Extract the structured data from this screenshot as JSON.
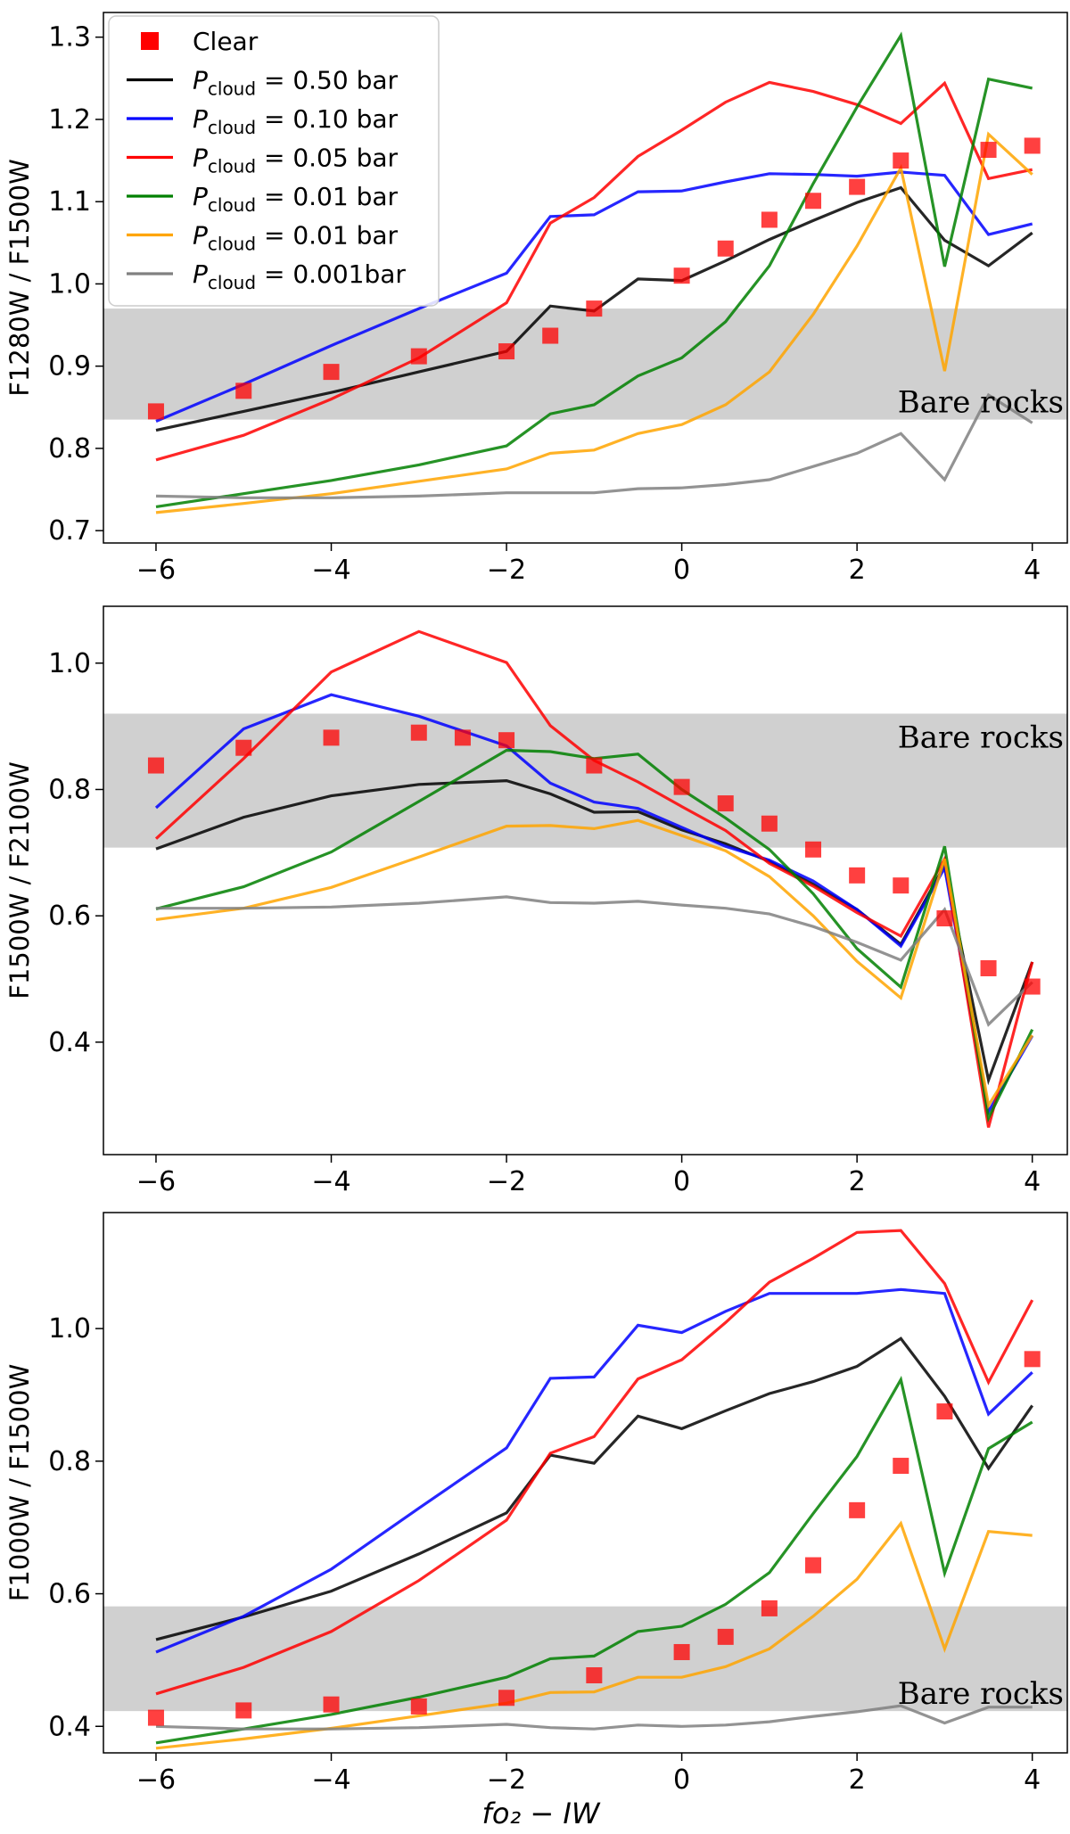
{
  "chart_data": [
    {
      "type": "line",
      "title": "",
      "xlabel": "",
      "ylabel": "F1280W / F1500W",
      "xlim": [
        -6.6,
        4.4
      ],
      "ylim": [
        0.685,
        1.33
      ],
      "xticks": [
        -6,
        -4,
        -2,
        0,
        2,
        4
      ],
      "xtick_labels": [
        "−6",
        "−4",
        "−2",
        "0",
        "2",
        "4"
      ],
      "yticks": [
        0.7,
        0.8,
        0.9,
        1.0,
        1.1,
        1.2,
        1.3
      ],
      "ytick_labels": [
        "0.7",
        "0.8",
        "0.9",
        "1.0",
        "1.1",
        "1.2",
        "1.3"
      ],
      "band": {
        "y0": 0.835,
        "y1": 0.97,
        "label": "Bare rocks",
        "label_pos": "right-bottom"
      },
      "legend": {
        "location": "top-left",
        "entries": [
          {
            "type": "marker",
            "color": "#ff0000",
            "label_main": "Clear",
            "label_sub": "",
            "label_tail": ""
          },
          {
            "type": "line",
            "color": "#000000",
            "label_main": "P",
            "label_sub": "cloud",
            "label_tail": " = 0.50 bar"
          },
          {
            "type": "line",
            "color": "#0000ff",
            "label_main": "P",
            "label_sub": "cloud",
            "label_tail": " = 0.10 bar"
          },
          {
            "type": "line",
            "color": "#ff0000",
            "label_main": "P",
            "label_sub": "cloud",
            "label_tail": " = 0.05 bar"
          },
          {
            "type": "line",
            "color": "#008000",
            "label_main": "P",
            "label_sub": "cloud",
            "label_tail": " = 0.01 bar"
          },
          {
            "type": "line",
            "color": "#ffa500",
            "label_main": "P",
            "label_sub": "cloud",
            "label_tail": " = 0.01 bar"
          },
          {
            "type": "line",
            "color": "#808080",
            "label_main": "P",
            "label_sub": "cloud",
            "label_tail": " = 0.001bar"
          }
        ]
      },
      "x": [
        -6,
        -5,
        -4,
        -3,
        -2,
        -1.5,
        -1,
        -0.5,
        0,
        0.5,
        1,
        1.5,
        2,
        2.5,
        3,
        3.5,
        4
      ],
      "scatter": {
        "name": "Clear",
        "color": "#ff0000",
        "y": [
          0.845,
          0.87,
          0.893,
          0.912,
          0.918,
          0.937,
          0.97,
          null,
          1.01,
          1.043,
          1.078,
          1.101,
          1.118,
          1.15,
          null,
          1.163,
          1.168
        ]
      },
      "series": [
        {
          "name": "0.50 bar",
          "color": "#000000",
          "values": [
            0.822,
            0.845,
            0.868,
            0.893,
            0.918,
            0.973,
            0.967,
            1.006,
            1.004,
            1.028,
            1.054,
            1.077,
            1.099,
            1.117,
            1.053,
            1.022,
            1.062
          ]
        },
        {
          "name": "0.10 bar",
          "color": "#0000ff",
          "values": [
            0.833,
            0.878,
            0.925,
            0.97,
            1.013,
            1.082,
            1.084,
            1.112,
            1.113,
            1.124,
            1.134,
            1.133,
            1.131,
            1.136,
            1.132,
            1.06,
            1.073
          ]
        },
        {
          "name": "0.05 bar",
          "color": "#ff0000",
          "values": [
            0.786,
            0.816,
            0.86,
            0.91,
            0.977,
            1.074,
            1.105,
            1.155,
            1.187,
            1.221,
            1.245,
            1.234,
            1.218,
            1.195,
            1.244,
            1.128,
            1.139
          ]
        },
        {
          "name": "0.01 bar",
          "color": "#008000",
          "values": [
            0.729,
            0.745,
            0.761,
            0.78,
            0.803,
            0.842,
            0.853,
            0.888,
            0.91,
            0.954,
            1.022,
            1.122,
            1.215,
            1.302,
            1.021,
            1.249,
            1.238
          ]
        },
        {
          "name": "0.01 bar",
          "color": "#ffa500",
          "values": [
            0.722,
            0.733,
            0.745,
            0.76,
            0.775,
            0.794,
            0.798,
            0.818,
            0.829,
            0.853,
            0.893,
            0.963,
            1.046,
            1.141,
            0.894,
            1.182,
            1.133
          ]
        },
        {
          "name": "0.001bar",
          "color": "#808080",
          "values": [
            0.742,
            0.74,
            0.74,
            0.742,
            0.746,
            0.746,
            0.746,
            0.751,
            0.752,
            0.756,
            0.762,
            0.778,
            0.794,
            0.818,
            0.762,
            0.865,
            0.831
          ]
        }
      ]
    },
    {
      "type": "line",
      "title": "",
      "xlabel": "",
      "ylabel": "F1500W / F2100W",
      "xlim": [
        -6.6,
        4.4
      ],
      "ylim": [
        0.222,
        1.09
      ],
      "xticks": [
        -6,
        -4,
        -2,
        0,
        2,
        4
      ],
      "xtick_labels": [
        "−6",
        "−4",
        "−2",
        "0",
        "2",
        "4"
      ],
      "yticks": [
        0.4,
        0.6,
        0.8,
        1.0
      ],
      "ytick_labels": [
        "0.4",
        "0.6",
        "0.8",
        "1.0"
      ],
      "band": {
        "y0": 0.708,
        "y1": 0.92,
        "label": "Bare rocks",
        "label_pos": "right-top"
      },
      "x": [
        -6,
        -5,
        -4,
        -3,
        -2.5,
        -2,
        -1.5,
        -1,
        -0.5,
        0,
        0.5,
        1,
        1.5,
        2,
        2.5,
        3,
        3.5,
        4
      ],
      "scatter": {
        "name": "Clear",
        "color": "#ff0000",
        "y": [
          0.838,
          0.866,
          0.882,
          0.89,
          0.882,
          0.878,
          null,
          0.838,
          null,
          0.804,
          0.778,
          0.746,
          0.705,
          0.664,
          0.648,
          0.596,
          0.517,
          0.488
        ]
      },
      "series": [
        {
          "name": "0.50 bar",
          "color": "#000000",
          "values": [
            0.706,
            0.756,
            0.79,
            0.808,
            null,
            0.814,
            0.793,
            0.764,
            0.765,
            0.736,
            0.714,
            0.686,
            0.65,
            0.61,
            0.555,
            0.68,
            0.34,
            0.527
          ]
        },
        {
          "name": "0.10 bar",
          "color": "#0000ff",
          "values": [
            0.771,
            0.896,
            0.95,
            0.916,
            null,
            0.869,
            0.81,
            0.78,
            0.77,
            0.74,
            0.71,
            0.688,
            0.655,
            0.61,
            0.552,
            0.676,
            0.29,
            0.41
          ]
        },
        {
          "name": "0.05 bar",
          "color": "#ff0000",
          "values": [
            0.722,
            0.849,
            0.986,
            1.05,
            null,
            1.001,
            0.901,
            0.846,
            0.812,
            0.773,
            0.735,
            0.683,
            0.647,
            0.605,
            0.568,
            0.69,
            0.265,
            0.527
          ]
        },
        {
          "name": "0.01 bar",
          "color": "#008000",
          "values": [
            0.611,
            0.646,
            0.701,
            0.781,
            null,
            0.862,
            0.86,
            0.849,
            0.856,
            0.8,
            0.755,
            0.705,
            0.635,
            0.548,
            0.487,
            0.71,
            0.28,
            0.42
          ]
        },
        {
          "name": "0.01 bar",
          "color": "#ffa500",
          "values": [
            0.594,
            0.612,
            0.645,
            0.693,
            null,
            0.742,
            0.743,
            0.738,
            0.751,
            0.727,
            0.703,
            0.662,
            0.6,
            0.528,
            0.47,
            0.69,
            0.3,
            0.411
          ]
        },
        {
          "name": "0.001bar",
          "color": "#808080",
          "values": [
            0.612,
            0.612,
            0.614,
            0.62,
            null,
            0.63,
            0.621,
            0.62,
            0.623,
            0.617,
            0.612,
            0.603,
            0.583,
            0.558,
            0.53,
            0.61,
            0.428,
            0.495
          ]
        }
      ]
    },
    {
      "type": "line",
      "title": "",
      "xlabel": "fo₂ − IW",
      "ylabel": "F1000W / F1500W",
      "xlim": [
        -6.6,
        4.4
      ],
      "ylim": [
        0.36,
        1.175
      ],
      "xticks": [
        -6,
        -4,
        -2,
        0,
        2,
        4
      ],
      "xtick_labels": [
        "−6",
        "−4",
        "−2",
        "0",
        "2",
        "4"
      ],
      "yticks": [
        0.4,
        0.6,
        0.8,
        1.0
      ],
      "ytick_labels": [
        "0.4",
        "0.6",
        "0.8",
        "1.0"
      ],
      "band": {
        "y0": 0.423,
        "y1": 0.581,
        "label": "Bare rocks",
        "label_pos": "right-bottom"
      },
      "x": [
        -6,
        -5,
        -4,
        -3,
        -2,
        -1.5,
        -1,
        -0.5,
        0,
        0.5,
        1,
        1.5,
        2,
        2.5,
        3,
        3.5,
        4
      ],
      "scatter": {
        "name": "Clear",
        "color": "#ff0000",
        "y": [
          0.413,
          0.424,
          0.433,
          0.43,
          0.443,
          null,
          0.477,
          null,
          0.512,
          0.535,
          0.578,
          0.643,
          0.726,
          0.793,
          0.875,
          null,
          0.954
        ]
      },
      "series": [
        {
          "name": "0.50 bar",
          "color": "#000000",
          "values": [
            0.531,
            0.565,
            0.604,
            0.66,
            0.722,
            0.809,
            0.797,
            0.868,
            0.849,
            0.876,
            0.902,
            0.92,
            0.943,
            0.985,
            0.898,
            0.789,
            0.884
          ]
        },
        {
          "name": "0.10 bar",
          "color": "#0000ff",
          "values": [
            0.512,
            0.566,
            0.637,
            0.729,
            0.82,
            0.925,
            0.927,
            1.005,
            0.994,
            1.026,
            1.053,
            1.053,
            1.053,
            1.059,
            1.053,
            0.871,
            0.934
          ]
        },
        {
          "name": "0.05 bar",
          "color": "#ff0000",
          "values": [
            0.449,
            0.489,
            0.543,
            0.62,
            0.711,
            0.812,
            0.837,
            0.924,
            0.953,
            1.009,
            1.07,
            1.106,
            1.145,
            1.148,
            1.068,
            0.919,
            1.043
          ]
        },
        {
          "name": "0.01 bar",
          "color": "#008000",
          "values": [
            0.375,
            0.396,
            0.418,
            0.444,
            0.474,
            0.502,
            0.506,
            0.543,
            0.551,
            0.584,
            0.632,
            0.721,
            0.807,
            0.923,
            0.631,
            0.819,
            0.859
          ]
        },
        {
          "name": "0.01 bar",
          "color": "#ffa500",
          "values": [
            0.367,
            0.381,
            0.397,
            0.416,
            0.435,
            0.451,
            0.452,
            0.474,
            0.474,
            0.49,
            0.517,
            0.566,
            0.622,
            0.706,
            0.517,
            0.694,
            0.688
          ]
        },
        {
          "name": "0.001bar",
          "color": "#808080",
          "values": [
            0.4,
            0.396,
            0.396,
            0.398,
            0.403,
            0.398,
            0.396,
            0.402,
            0.4,
            0.402,
            0.407,
            0.415,
            0.422,
            0.431,
            0.405,
            0.429,
            0.429
          ]
        }
      ]
    }
  ]
}
